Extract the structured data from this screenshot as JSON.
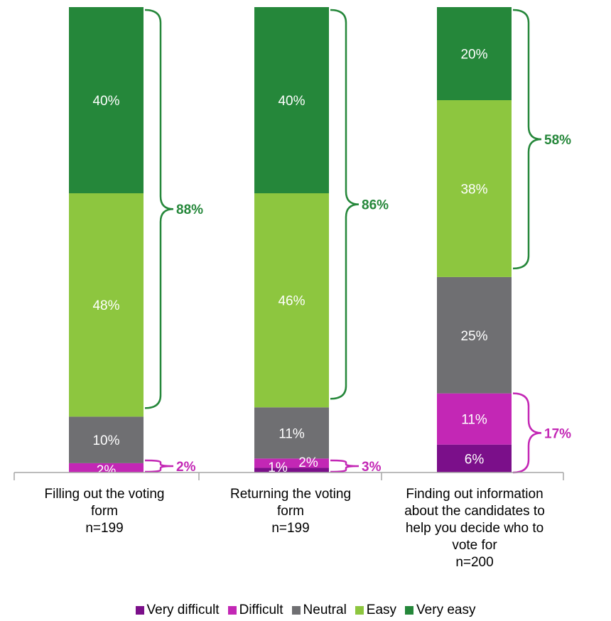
{
  "chart_data": {
    "type": "bar",
    "stacked": true,
    "categories": [
      "Filling out the voting\nform\nn=199",
      "Returning the voting\nform\nn=199",
      "Finding out information\nabout the candidates to\nhelp you decide who to\nvote for\nn=200"
    ],
    "series": [
      {
        "name": "Very difficult",
        "color": "#7B0F8A",
        "values": [
          0,
          1,
          6
        ],
        "labels": [
          "",
          "1%",
          "6%"
        ]
      },
      {
        "name": "Difficult",
        "color": "#C327B5",
        "values": [
          2,
          2,
          11
        ],
        "labels": [
          "2%",
          "2%",
          "11%"
        ]
      },
      {
        "name": "Neutral",
        "color": "#6F6F72",
        "values": [
          10,
          11,
          25
        ],
        "labels": [
          "10%",
          "11%",
          "25%"
        ]
      },
      {
        "name": "Easy",
        "color": "#8DC63F",
        "values": [
          48,
          46,
          38
        ],
        "labels": [
          "48%",
          "46%",
          "38%"
        ]
      },
      {
        "name": "Very easy",
        "color": "#25873A",
        "values": [
          40,
          40,
          20
        ],
        "labels": [
          "40%",
          "40%",
          "20%"
        ]
      }
    ],
    "ylim": [
      0,
      100
    ],
    "legend_position": "bottom",
    "grid": false,
    "summary_brackets": {
      "positive": {
        "color": "#25873A",
        "labels": [
          "88%",
          "86%",
          "58%"
        ]
      },
      "negative": {
        "color": "#C327B5",
        "labels": [
          "2%",
          "3%",
          "17%"
        ]
      }
    }
  }
}
